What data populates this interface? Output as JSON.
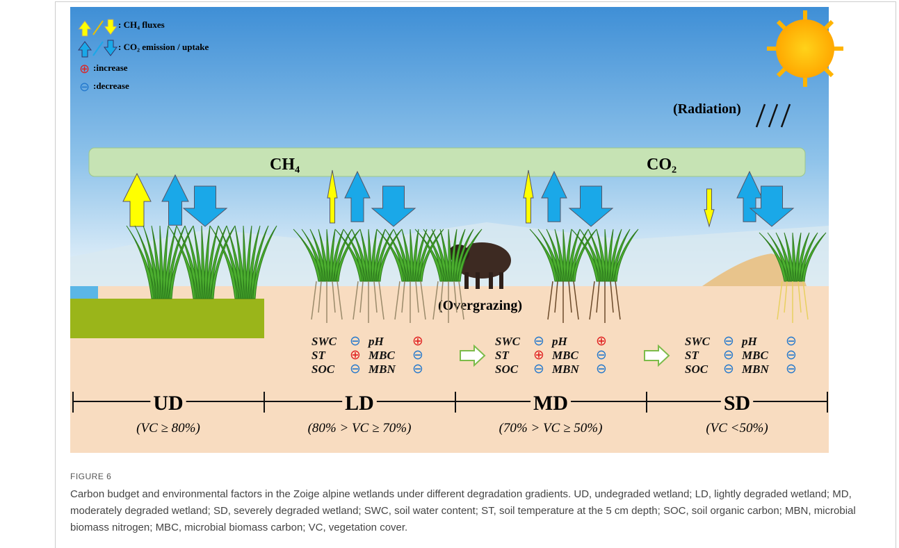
{
  "legend": [
    ": CH₄ fluxes",
    ": CO₂ emission / uptake",
    ":increase",
    ":decrease"
  ],
  "radiation": "(Radiation)",
  "band": [
    "CH₄",
    "CO₂"
  ],
  "overgrazing": "(Overgrazing)",
  "factors": [
    [
      [
        "SWC",
        "⊖",
        "pH",
        "⊕"
      ],
      [
        "ST",
        "⊕",
        "MBC",
        "⊖"
      ],
      [
        "SOC",
        "⊖",
        "MBN",
        "⊖"
      ]
    ],
    [
      [
        "SWC",
        "⊖",
        "pH",
        "⊕"
      ],
      [
        "ST",
        "⊕",
        "MBC",
        "⊖"
      ],
      [
        "SOC",
        "⊖",
        "MBN",
        "⊖"
      ]
    ],
    [
      [
        "SWC",
        "⊖",
        "pH",
        "⊖"
      ],
      [
        "ST",
        "⊖",
        "MBC",
        "⊖"
      ],
      [
        "SOC",
        "⊖",
        "MBN",
        "⊖"
      ]
    ]
  ],
  "zones": [
    {
      "code": "UD",
      "range": "(VC ≥ 80%)"
    },
    {
      "code": "LD",
      "range": "(80% > VC ≥ 70%)"
    },
    {
      "code": "MD",
      "range": "(70% > VC ≥ 50%)"
    },
    {
      "code": "SD",
      "range": "(VC <50%)"
    }
  ],
  "caption": {
    "label": "FIGURE 6",
    "text": "Carbon budget and environmental factors in the Zoige alpine wetlands under different degradation gradients. UD, undegraded wetland; LD, lightly degraded wetland; MD, moderately degraded wetland; SD, severely degraded wetland; SWC, soil water content; ST, soil temperature at the 5 cm depth; SOC, soil organic carbon; MBN, microbial biomass nitrogen; MBC, microbial biomass carbon; VC, vegetation cover."
  }
}
